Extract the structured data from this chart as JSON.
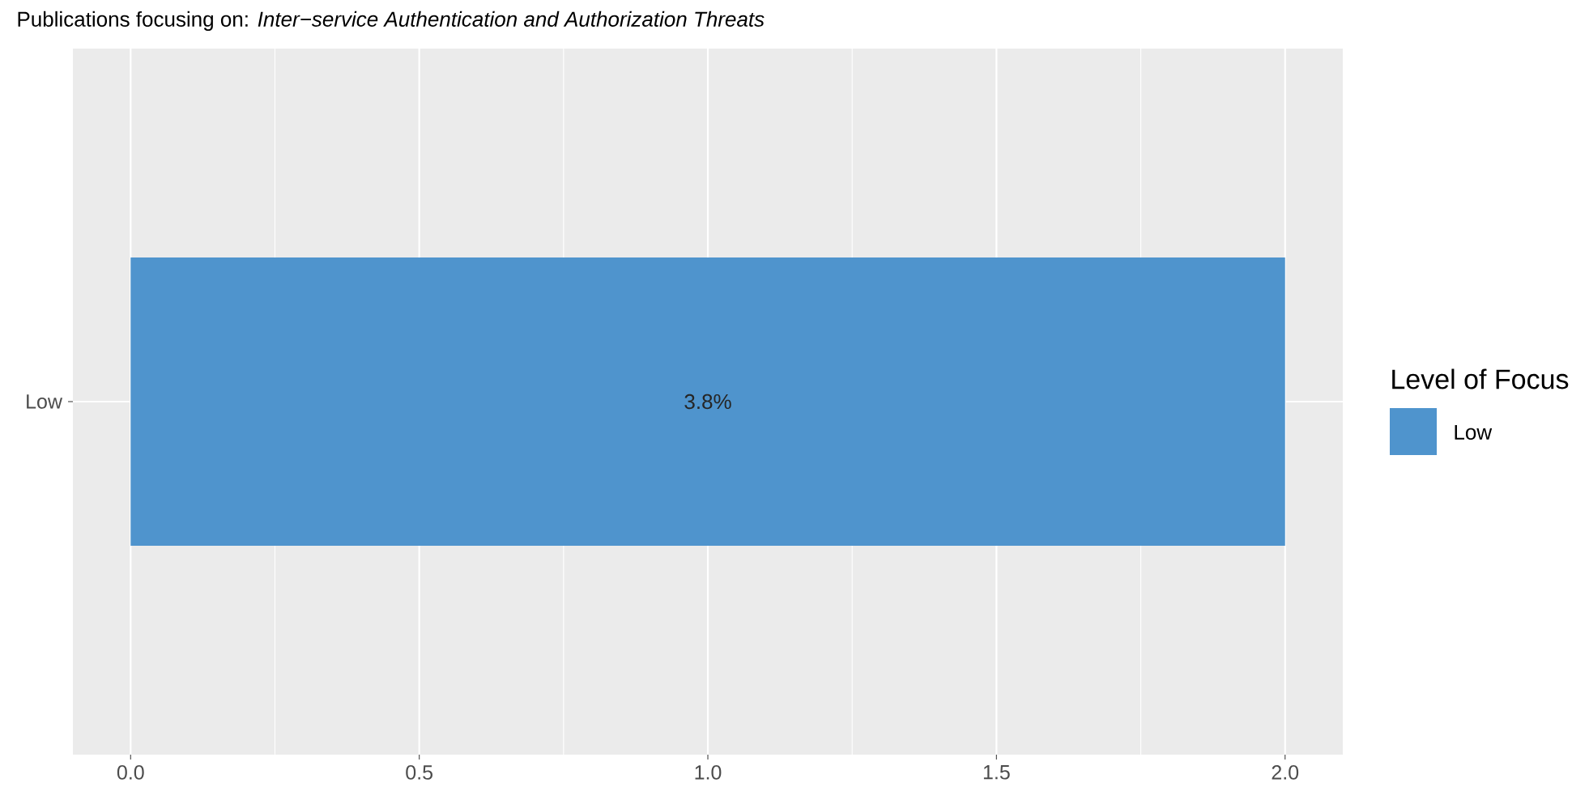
{
  "chart_data": {
    "type": "bar",
    "orientation": "horizontal",
    "title": "Publications focusing on: *Inter−service Authentication and Authorization Threats*",
    "categories": [
      "Low"
    ],
    "series": [
      {
        "name": "Low",
        "color": "#4f94cd",
        "values": [
          2
        ]
      }
    ],
    "annotations": [
      "3.8%"
    ],
    "xlim": [
      -0.1,
      2.1
    ],
    "xticks": [
      {
        "value": 0,
        "label": "0.0"
      },
      {
        "value": 0.5,
        "label": "0.5"
      },
      {
        "value": 1,
        "label": "1.0"
      },
      {
        "value": 1.5,
        "label": "1.5"
      },
      {
        "value": 2,
        "label": "2.0"
      }
    ],
    "grid": true,
    "legend": "right",
    "legend_title": "Level of Focus"
  }
}
